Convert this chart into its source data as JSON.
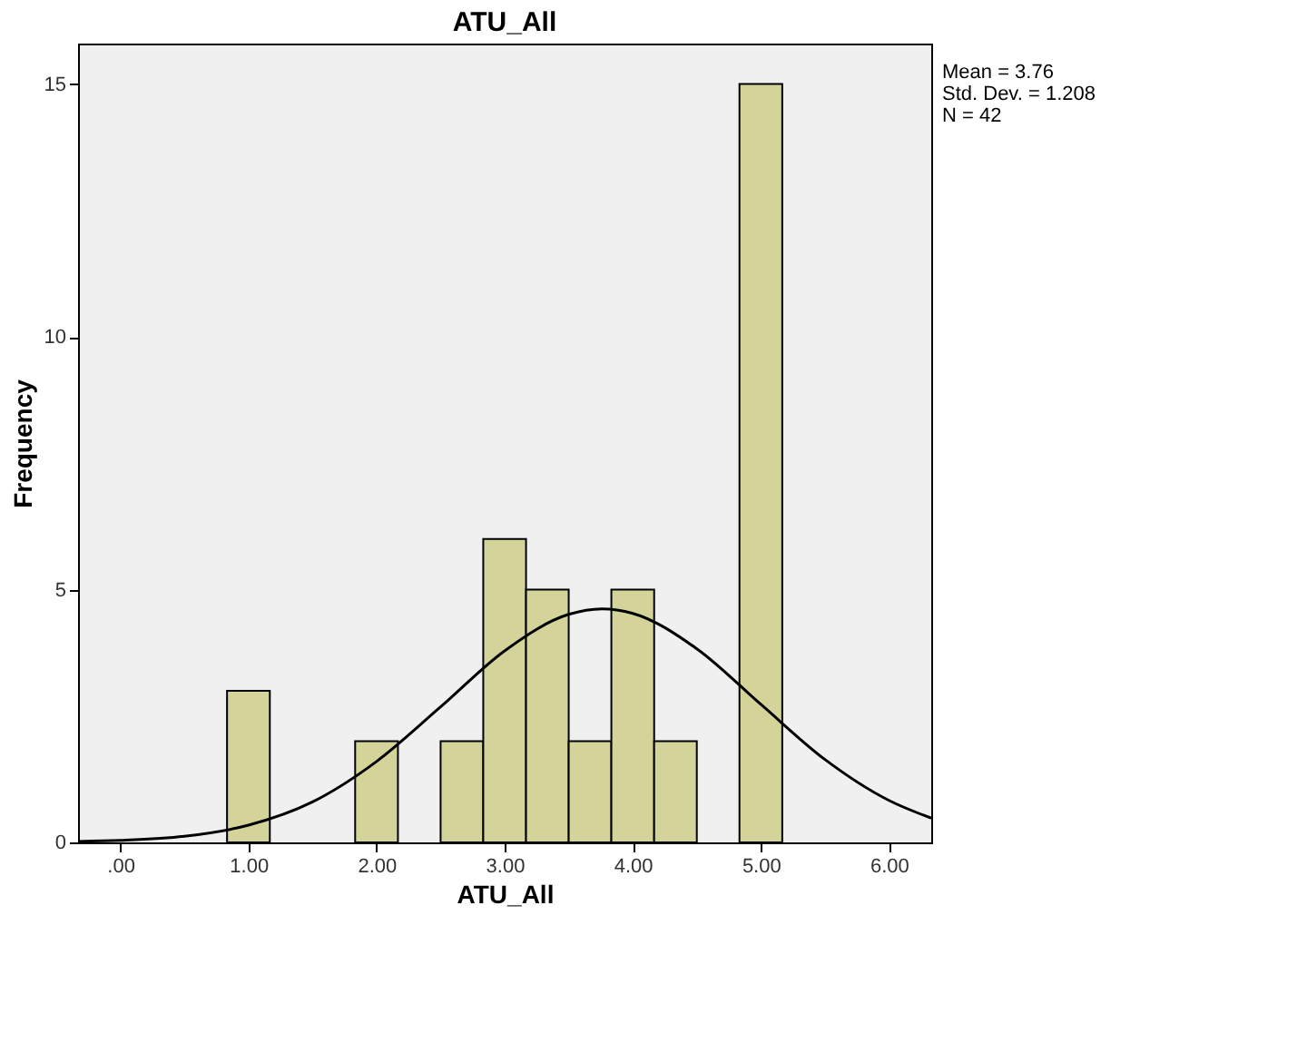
{
  "chart_data": {
    "type": "histogram",
    "title": "ATU_All",
    "xlabel": "ATU_All",
    "ylabel": "Frequency",
    "bins": [
      0.833,
      1.167,
      1.5,
      1.833,
      2.167,
      2.5,
      2.833,
      3.167,
      3.5,
      3.833,
      4.167,
      4.5,
      4.833,
      5.167
    ],
    "values": [
      3,
      0,
      0,
      2,
      0,
      2,
      6,
      5,
      2,
      5,
      2,
      0,
      15
    ],
    "color": "#d4d49a",
    "series": [
      {
        "type": "line",
        "color": "#000000",
        "x": [
          -0.33,
          0,
          0.5,
          1.0,
          1.5,
          2.0,
          2.5,
          3.0,
          3.5,
          3.76,
          4.0,
          4.5,
          5.0,
          5.5,
          6.0,
          6.33
        ],
        "values": [
          0.02,
          0.04,
          0.12,
          0.34,
          0.8,
          1.6,
          2.68,
          3.79,
          4.51,
          4.62,
          4.53,
          3.83,
          2.73,
          1.64,
          0.83,
          0.48
        ]
      }
    ],
    "xlim": [
      -0.33,
      6.33
    ],
    "xticks": [
      {
        "value": 0,
        "label": ".00"
      },
      {
        "value": 1,
        "label": "1.00"
      },
      {
        "value": 2,
        "label": "2.00"
      },
      {
        "value": 3,
        "label": "3.00"
      },
      {
        "value": 4,
        "label": "4.00"
      },
      {
        "value": 5,
        "label": "5.00"
      },
      {
        "value": 6,
        "label": "6.00"
      }
    ],
    "ylim": [
      0,
      15.8
    ],
    "yticks": [
      0,
      5,
      10,
      15
    ],
    "grid": false,
    "annotations": [
      "Mean = 3.76",
      "Std. Dev. = 1.208",
      "N = 42"
    ]
  }
}
